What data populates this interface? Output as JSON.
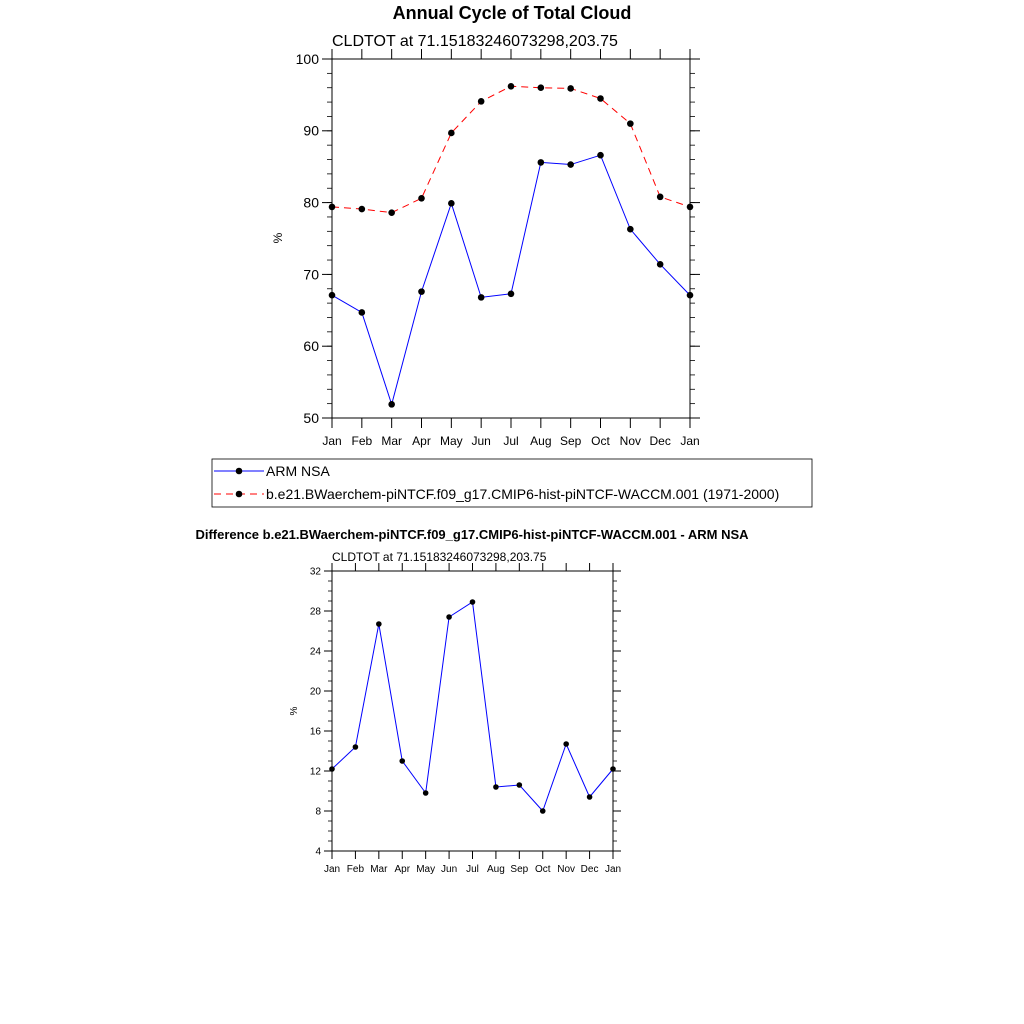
{
  "chart_data": [
    {
      "type": "line",
      "title": "Annual Cycle of Total Cloud",
      "subtitle": "CLDTOT at 71.15183246073298,203.75",
      "xlabel": "",
      "ylabel": "%",
      "categories": [
        "Jan",
        "Feb",
        "Mar",
        "Apr",
        "May",
        "Jun",
        "Jul",
        "Aug",
        "Sep",
        "Oct",
        "Nov",
        "Dec",
        "Jan"
      ],
      "ylim": [
        50,
        100
      ],
      "yticks": [
        "50",
        "60",
        "70",
        "80",
        "90",
        "100"
      ],
      "series": [
        {
          "name": "ARM NSA",
          "color": "#0000ff",
          "dashed": false,
          "values": [
            67.1,
            64.7,
            51.9,
            67.6,
            79.9,
            66.8,
            67.3,
            85.6,
            85.3,
            86.6,
            76.3,
            71.4,
            67.1
          ]
        },
        {
          "name": "b.e21.BWaerchem-piNTCF.f09_g17.CMIP6-hist-piNTCF-WACCM.001 (1971-2000)",
          "color": "#ff0000",
          "dashed": true,
          "values": [
            79.4,
            79.1,
            78.6,
            80.6,
            89.7,
            94.1,
            96.2,
            96.0,
            95.9,
            94.5,
            91.0,
            80.8,
            79.4
          ]
        }
      ],
      "legend_position": "bottom"
    },
    {
      "type": "line",
      "title": "Difference b.e21.BWaerchem-piNTCF.f09_g17.CMIP6-hist-piNTCF-WACCM.001 - ARM NSA",
      "subtitle": "CLDTOT at 71.15183246073298,203.75",
      "xlabel": "",
      "ylabel": "%",
      "categories": [
        "Jan",
        "Feb",
        "Mar",
        "Apr",
        "May",
        "Jun",
        "Jul",
        "Aug",
        "Sep",
        "Oct",
        "Nov",
        "Dec",
        "Jan"
      ],
      "ylim": [
        4,
        32
      ],
      "yticks": [
        "4",
        "8",
        "12",
        "16",
        "20",
        "24",
        "28",
        "32"
      ],
      "series": [
        {
          "name": "Difference",
          "color": "#0000ff",
          "dashed": false,
          "values": [
            12.2,
            14.4,
            26.7,
            13.0,
            9.8,
            27.4,
            28.9,
            10.4,
            10.6,
            8.0,
            14.7,
            9.4,
            12.2
          ]
        }
      ]
    }
  ]
}
